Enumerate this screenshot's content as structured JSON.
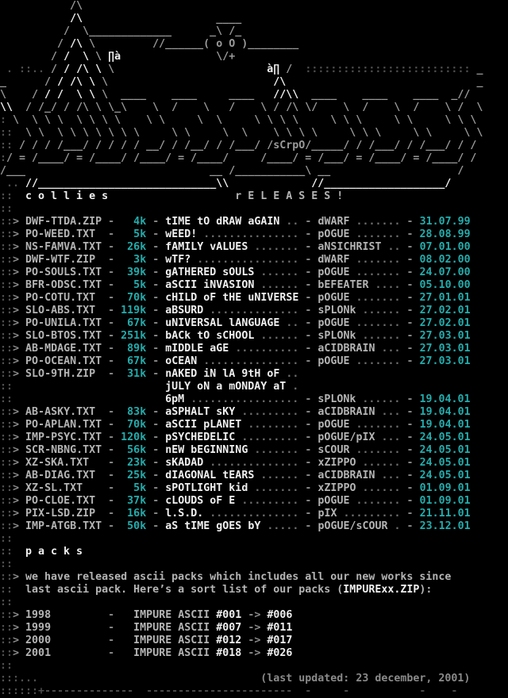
{
  "palette": {
    "background": "#000000",
    "dim": "#4e4e4e",
    "art_gray": "#9a9a9a",
    "separator_gray": "#8a8a8a",
    "text_gray": "#b4b4b4",
    "white": "#f0f0f0",
    "dots_gray": "#6e6e6e",
    "cyan": "#23acac"
  },
  "margins": {
    "m2": "::",
    "arrow": ">"
  },
  "header_art": {
    "artist_tag": "sCrpO",
    "lines": [
      [
        {
          "t": "           /\\",
          "c": "a"
        }
      ],
      [
        {
          "t": "           ",
          "c": "a"
        },
        {
          "t": "/\\",
          "c": "w"
        },
        {
          "t": "                     ____",
          "c": "a"
        }
      ],
      [
        {
          "t": "          /  \\",
          "c": "a"
        },
        {
          "t": "_____________      _\\ /_",
          "c": "a"
        }
      ],
      [
        {
          "t": "         / ",
          "c": "a"
        },
        {
          "t": "/\\",
          "c": "w"
        },
        {
          "t": " \\         //______( o O )________",
          "c": "a"
        }
      ],
      [
        {
          "t": "        / ",
          "c": "a"
        },
        {
          "t": "/  \\",
          "c": "w"
        },
        {
          "t": " \\ ",
          "c": "a"
        },
        {
          "t": "∏à",
          "c": "w"
        },
        {
          "t": "               \\/+",
          "c": "a"
        }
      ],
      [
        {
          "t": " . ::..",
          "c": "d"
        },
        {
          "t": " / ",
          "c": "a"
        },
        {
          "t": "/ /\\ \\",
          "c": "w"
        },
        {
          "t": " \\                        ",
          "c": "a"
        },
        {
          "t": "à∏",
          "c": "w"
        },
        {
          "t": " /  ",
          "c": "a"
        },
        {
          "t": "::::::::::::::::::::::::::",
          "c": "d"
        },
        {
          "t": " _",
          "c": "a"
        }
      ],
      [
        {
          "t": "_      / ",
          "c": "a"
        },
        {
          "t": "/ /\\ \\",
          "c": "w"
        },
        {
          "t": " \\                          ",
          "c": "a"
        },
        {
          "t": "/\\",
          "c": "w"
        },
        {
          "t": "                              _",
          "c": "a"
        }
      ],
      [
        {
          "t": "\\    / ",
          "c": "a"
        },
        {
          "t": "/ /  \\ \\",
          "c": "w"
        },
        {
          "t": " \\  ____    ____     ____   ",
          "c": "a"
        },
        {
          "t": "//\\\\",
          "c": "w"
        },
        {
          "t": "  ____    ____    ____  _//",
          "c": "a"
        }
      ],
      [
        {
          "t": "\\\\",
          "c": "w"
        },
        {
          "t": "  / /_/ / /\\ \\ \\_\\    \\  /    \\   /    \\ / /\\ \\/    \\  /    \\  /    \\ /  \\",
          "c": "a"
        }
      ],
      [
        {
          "t": ": ",
          "c": "d"
        },
        {
          "t": "\\  \\ \\ \\  \\ \\ \\ \\    \\ \\     \\  \\     \\ \\ \\ \\     \\ \\ \\     \\ \\     \\ \\ \\",
          "c": "a"
        }
      ],
      [
        {
          "t": "::",
          "c": "d"
        },
        {
          "t": "  \\ \\  \\ \\ \\ \\ \\ \\ \\     \\ \\     \\  \\    \\ \\ \\ \\     \\ \\ \\     \\ \\     \\ \\",
          "c": "a"
        }
      ],
      [
        {
          "t": "::",
          "c": "d"
        },
        {
          "t": " / / / /___/ / / / / __/ / /__/ / /___/ /",
          "c": "a"
        },
        {
          "t": "sCrpO",
          "c": "a",
          "n": "artist-signature"
        },
        {
          "t": "/_____/ / /___/ / /___/ / /",
          "c": "a"
        }
      ],
      [
        {
          "t": ":",
          "c": "d"
        },
        {
          "t": "/ = /____/ = /____/ /____/ = /____/     /____/ = /___/ = /____/ = /____/ /",
          "c": "a"
        }
      ],
      [
        {
          "t": "/___                             __ /___________\\ __                    /",
          "c": "a"
        }
      ],
      [
        {
          "t": " .. ",
          "c": "d"
        },
        {
          "t": "//____________________________\\\\",
          "c": "w"
        },
        {
          "t": "             ",
          "c": "a"
        },
        {
          "t": "//___________________/",
          "c": "w"
        }
      ]
    ]
  },
  "releases": {
    "heading_left": "c o l l i e s",
    "heading_right": "r E L E A S E S !",
    "rows": [
      {
        "file": "DWF-TTDA.ZIP",
        "size": "4k",
        "title": "tIME tO dRAW aGAIN",
        "tdots": " ..",
        "author": "dWARF",
        "adots": " .......",
        "date": "31.07.99"
      },
      {
        "file": "PO-WEED.TXT",
        "size": "5k",
        "title": "wEED!",
        "tdots": " ...............",
        "author": "pOGUE",
        "adots": " .......",
        "date": "28.08.99"
      },
      {
        "file": "NS-FAMVA.TXT",
        "size": "26k",
        "title": "fAMILY vALUES",
        "tdots": " .......",
        "author": "aNSICHRIST",
        "adots": " ..",
        "date": "07.01.00"
      },
      {
        "file": "DWF-WTF.ZIP",
        "size": "3k",
        "title": "wTF?",
        "tdots": " ................",
        "author": "dWARF",
        "adots": " .......",
        "date": "08.02.00"
      },
      {
        "file": "PO-SOULS.TXT",
        "size": "39k",
        "title": "gATHERED sOULS",
        "tdots": " ......",
        "author": "pOGUE",
        "adots": " .......",
        "date": "24.07.00"
      },
      {
        "file": "BFR-ODSC.TXT",
        "size": "5k",
        "title": "aSCII iNVASION",
        "tdots": " ......",
        "author": "bEFEATER",
        "adots": " ....",
        "date": "05.10.00"
      },
      {
        "file": "PO-COTU.TXT",
        "size": "70k",
        "title": "cHILD oF tHE uNIVERSE",
        "tdots": "",
        "author": "pOGUE",
        "adots": " .......",
        "date": "27.01.01"
      },
      {
        "file": "SLO-ABS.TXT",
        "size": "119k",
        "title": "aBSURD",
        "tdots": " ..............",
        "author": "sPLONk",
        "adots": " ......",
        "date": "27.02.01"
      },
      {
        "file": "PO-UNILA.TXT",
        "size": "67k",
        "title": "uNIVERSAL lANGUAGE",
        "tdots": " ..",
        "author": "pOGUE",
        "adots": " .......",
        "date": "27.02.01"
      },
      {
        "file": "SLO-BTOS.TXT",
        "size": "251k",
        "title": "bACk tO sCHOOL",
        "tdots": " ......",
        "author": "sPLONk",
        "adots": " ......",
        "date": "27.03.01"
      },
      {
        "file": "AB-MDAGE.TXT",
        "size": "89k",
        "title": "mIDDLE aGE",
        "tdots": " ..........",
        "author": "aCIDBRAIN",
        "adots": " ...",
        "date": "27.03.01"
      },
      {
        "file": "PO-OCEAN.TXT",
        "size": "67k",
        "title": "oCEAN",
        "tdots": " ...............",
        "author": "pOGUE",
        "adots": " .......",
        "date": "27.03.01"
      },
      {
        "file": "SLO-9TH.ZIP",
        "size": "31k",
        "title": "nAKED iN lA 9tH oF",
        "tdots": " ..",
        "author": null,
        "adots": null,
        "date": null
      },
      {
        "cont": true,
        "title": "jULY oN a mONDAY aT",
        "tdots": " .",
        "author": null,
        "adots": null,
        "date": null
      },
      {
        "cont": true,
        "title": "6pM",
        "tdots": " .................",
        "author": "sPLONk",
        "adots": " ......",
        "date": "19.04.01"
      },
      {
        "file": "AB-ASKY.TXT",
        "size": "83k",
        "title": "aSPHALT sKY",
        "tdots": " .........",
        "author": "aCIDBRAIN",
        "adots": " ...",
        "date": "19.04.01"
      },
      {
        "file": "PO-APLAN.TXT",
        "size": "70k",
        "title": "aSCII pLANET",
        "tdots": " ........",
        "author": "pOGUE",
        "adots": " .......",
        "date": "19.04.01"
      },
      {
        "file": "IMP-PSYC.TXT",
        "size": "120k",
        "title": "pSYCHEDELIC",
        "tdots": " .........",
        "author": "pOGUE/pIX",
        "adots": " ...",
        "date": "24.05.01"
      },
      {
        "file": "SCR-NBNG.TXT",
        "size": "56k",
        "title": "nEW bEGINNING",
        "tdots": " .......",
        "author": "sCOUR",
        "adots": " .......",
        "date": "24.05.01"
      },
      {
        "file": "XZ-SKA.TXT",
        "size": "23k",
        "title": "sKADAD",
        "tdots": " ..............",
        "author": "xZIPPO",
        "adots": " ......",
        "date": "24.05.01"
      },
      {
        "file": "AB-DIAG.TXT",
        "size": "25k",
        "title": "dIAGONAL tEARS",
        "tdots": " ......",
        "author": "aCIDBRAIN",
        "adots": " ...",
        "date": "24.05.01"
      },
      {
        "file": "XZ-SL.TXT",
        "size": "5k",
        "title": "sPOTLIGHT kid",
        "tdots": " .......",
        "author": "xZIPPO",
        "adots": " ......",
        "date": "01.09.01"
      },
      {
        "file": "PO-CLOE.TXT",
        "size": "37k",
        "title": "cLOUDS oF E",
        "tdots": " .........",
        "author": "pOGUE",
        "adots": " .......",
        "date": "01.09.01"
      },
      {
        "file": "PIX-LSD.ZIP",
        "size": "16k",
        "title": "l.S.D.",
        "tdots": " ..............",
        "author": "pIX",
        "adots": " .........",
        "date": "21.11.01"
      },
      {
        "file": "IMP-ATGB.TXT",
        "size": "50k",
        "title": "aS tIME gOES bY",
        "tdots": " .....",
        "author": "pOGUE/sCOUR",
        "adots": " .",
        "date": "23.12.01"
      }
    ]
  },
  "packs": {
    "heading": "p a c k s",
    "para1": "we have released ascii packs which includes all our new works since",
    "para2_pre": "last ascii pack. Here’s a sort list of our packs (",
    "para2_file": "IMPURExx.ZIP",
    "para2_post": "):",
    "rows": [
      {
        "year": "1998",
        "label": "IMPURE ASCII",
        "from": "#001",
        "to": "#006"
      },
      {
        "year": "1999",
        "label": "IMPURE ASCII",
        "from": "#007",
        "to": "#011"
      },
      {
        "year": "2000",
        "label": "IMPURE ASCII",
        "from": "#012",
        "to": "#017"
      },
      {
        "year": "2001",
        "label": "IMPURE ASCII",
        "from": "#018",
        "to": "#026"
      }
    ],
    "range_arrow": "->"
  },
  "footer": {
    "left": ":::...",
    "updated": "(last updated: 23 december, 2001)",
    "ruler": "::::::+--------------  -----------------------  -     -           -    -"
  }
}
